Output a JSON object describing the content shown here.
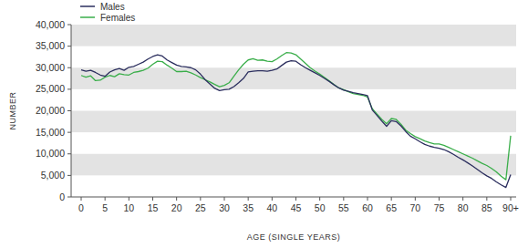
{
  "chart_data": {
    "type": "line",
    "x_label": "AGE (SINGLE YEARS)",
    "y_label": "NUMBER",
    "categories": [
      "0",
      null,
      null,
      null,
      null,
      "5",
      null,
      null,
      null,
      null,
      "10",
      null,
      null,
      null,
      null,
      "15",
      null,
      null,
      null,
      null,
      "20",
      null,
      null,
      null,
      null,
      "25",
      null,
      null,
      null,
      null,
      "30",
      null,
      null,
      null,
      null,
      "35",
      null,
      null,
      null,
      null,
      "40",
      null,
      null,
      null,
      null,
      "45",
      null,
      null,
      null,
      null,
      "50",
      null,
      null,
      null,
      null,
      "55",
      null,
      null,
      null,
      null,
      "60",
      null,
      null,
      null,
      null,
      "65",
      null,
      null,
      null,
      null,
      "70",
      null,
      null,
      null,
      null,
      "75",
      null,
      null,
      null,
      null,
      "80",
      null,
      null,
      null,
      null,
      "85",
      null,
      null,
      null,
      null,
      "90+"
    ],
    "series": [
      {
        "name": "Males",
        "color": "#2b2e5e",
        "values": [
          29500,
          29200,
          29400,
          28900,
          28300,
          28000,
          29000,
          29500,
          29800,
          29400,
          30100,
          30300,
          30800,
          31300,
          32000,
          32600,
          33000,
          32700,
          31800,
          31200,
          30600,
          30300,
          30200,
          30000,
          29500,
          28500,
          27200,
          26200,
          25200,
          24700,
          24900,
          25000,
          25600,
          26500,
          27500,
          29000,
          29200,
          29300,
          29300,
          29200,
          29400,
          29700,
          30500,
          31300,
          31600,
          31500,
          30700,
          30000,
          29400,
          28800,
          28200,
          27500,
          26800,
          26000,
          25300,
          24800,
          24500,
          24200,
          24000,
          23800,
          23500,
          20200,
          18900,
          17600,
          16400,
          17700,
          17500,
          16500,
          15200,
          14100,
          13500,
          12800,
          12200,
          11800,
          11500,
          11300,
          11000,
          10500,
          9900,
          9200,
          8600,
          7900,
          7200,
          6400,
          5600,
          4900,
          4300,
          3500,
          2800,
          2200,
          5200
        ]
      },
      {
        "name": "Females",
        "color": "#3aae4a",
        "values": [
          28200,
          27800,
          28100,
          27000,
          27100,
          27800,
          28200,
          27900,
          28600,
          28400,
          28300,
          28900,
          29100,
          29400,
          29900,
          30800,
          31500,
          31400,
          30600,
          29900,
          29100,
          29100,
          29200,
          28800,
          28300,
          27700,
          27200,
          26700,
          26100,
          25600,
          25900,
          26500,
          28000,
          29500,
          30800,
          31800,
          32100,
          31700,
          31800,
          31500,
          31400,
          32000,
          32800,
          33500,
          33400,
          33000,
          32000,
          31000,
          30000,
          29200,
          28500,
          27700,
          26900,
          26100,
          25300,
          24900,
          24400,
          24000,
          23800,
          23600,
          23200,
          20500,
          19200,
          18000,
          17000,
          18200,
          18000,
          16900,
          15500,
          14700,
          14000,
          13500,
          13000,
          12600,
          12300,
          12300,
          12000,
          11500,
          11000,
          10500,
          10000,
          9500,
          9000,
          8400,
          7800,
          7300,
          6600,
          5800,
          4800,
          4000,
          14200
        ]
      }
    ],
    "ylim": [
      0,
      40000
    ],
    "yticks": [
      0,
      {
        "value": 5000,
        "label": "5,000"
      },
      {
        "value": 10000,
        "label": "10,000"
      },
      {
        "value": 15000,
        "label": "15,000"
      },
      {
        "value": 20000,
        "label": "20,000"
      },
      {
        "value": 25000,
        "label": "25,000"
      },
      {
        "value": 30000,
        "label": "30,000"
      },
      {
        "value": 35000,
        "label": "35,000"
      },
      {
        "value": 40000,
        "label": "40,000"
      }
    ],
    "grid": true,
    "legend": "top-left"
  }
}
